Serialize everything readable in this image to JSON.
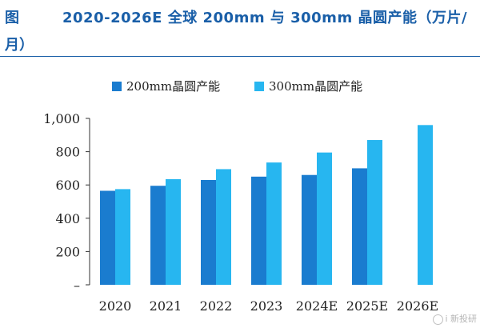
{
  "figure": {
    "label": "图",
    "title_line1": "2020-2026E 全球 200mm 与 300mm 晶圆产能（万片/",
    "title_line2": "月）"
  },
  "watermark": "i 新投研",
  "colors": {
    "series_200mm": "#1a7ccf",
    "series_300mm": "#27b6f0",
    "axis": "#333333",
    "title": "#1a5fa8"
  },
  "chart_data": {
    "type": "bar",
    "categories": [
      "2020",
      "2021",
      "2022",
      "2023",
      "2024E",
      "2025E",
      "2026E"
    ],
    "series": [
      {
        "name": "200mm晶圆产能",
        "values": [
          565,
          595,
          630,
          650,
          660,
          700,
          null
        ]
      },
      {
        "name": "300mm晶圆产能",
        "values": [
          575,
          635,
          695,
          735,
          795,
          870,
          960
        ]
      }
    ],
    "yticks": [
      0,
      200,
      400,
      600,
      800,
      1000
    ],
    "ytick_labels": [
      "–",
      "200",
      "400",
      "600",
      "800",
      "1,000"
    ],
    "ylim": [
      0,
      1000
    ],
    "legend_position": "top",
    "grid": false,
    "title": "",
    "xlabel": "",
    "ylabel": ""
  }
}
